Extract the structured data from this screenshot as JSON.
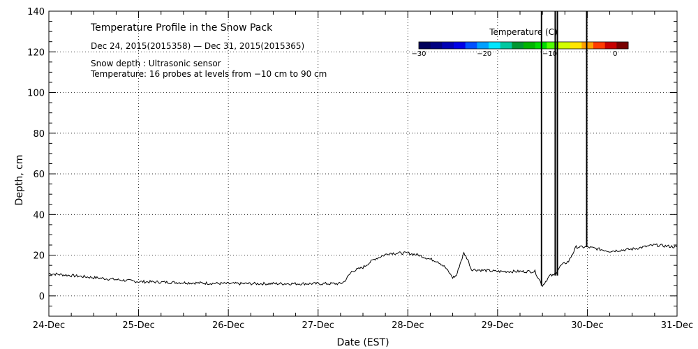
{
  "chart_data": {
    "type": "line",
    "title": "Temperature Profile in the Snow Pack",
    "subtitle": "Dec 24, 2015(2015358) — Dec 31, 2015(2015365)",
    "notes": [
      "Snow depth : Ultrasonic sensor",
      "Temperature: 16 probes at levels from −10 cm to 90 cm"
    ],
    "xlabel": "Date (EST)",
    "ylabel": "Depth, cm",
    "xlim": [
      "2015-12-24",
      "2015-12-31"
    ],
    "ylim": [
      -10,
      140
    ],
    "x_tick_labels": [
      "24-Dec",
      "25-Dec",
      "26-Dec",
      "27-Dec",
      "28-Dec",
      "29-Dec",
      "30-Dec",
      "31-Dec"
    ],
    "y_tick_labels": [
      "0",
      "20",
      "40",
      "60",
      "80",
      "100",
      "120",
      "140"
    ],
    "grid": true,
    "colorbar": {
      "title": "Temperature (C)",
      "tick_labels": [
        "−30",
        "−20",
        "−10",
        "0"
      ],
      "range": [
        -30,
        2
      ],
      "colors": [
        "#00005a",
        "#000080",
        "#0000b4",
        "#0000e6",
        "#0050ff",
        "#00a0ff",
        "#00e6ff",
        "#00c8a0",
        "#009632",
        "#00b400",
        "#00dc00",
        "#50ff00",
        "#d2ff00",
        "#ffe600",
        "#ffa000",
        "#ff3c00",
        "#c80000",
        "#780000"
      ]
    },
    "series": [
      {
        "color": "#000000",
        "points": [
          [
            "2015-12-24 00:00",
            11
          ],
          [
            "2015-12-24 06:00",
            10
          ],
          [
            "2015-12-24 12:00",
            9
          ],
          [
            "2015-12-24 18:00",
            8
          ],
          [
            "2015-12-25 00:00",
            7
          ],
          [
            "2015-12-25 12:00",
            6.5
          ],
          [
            "2015-12-26 00:00",
            6
          ],
          [
            "2015-12-26 12:00",
            6
          ],
          [
            "2015-12-27 00:00",
            6
          ],
          [
            "2015-12-27 06:00",
            6
          ],
          [
            "2015-12-27 07:00",
            7
          ],
          [
            "2015-12-27 09:00",
            12
          ],
          [
            "2015-12-27 12:00",
            14
          ],
          [
            "2015-12-27 15:00",
            18
          ],
          [
            "2015-12-27 19:00",
            21
          ],
          [
            "2015-12-28 00:00",
            21
          ],
          [
            "2015-12-28 03:00",
            20
          ],
          [
            "2015-12-28 06:00",
            18
          ],
          [
            "2015-12-28 08:00",
            17
          ],
          [
            "2015-12-28 10:00",
            14
          ],
          [
            "2015-12-28 12:00",
            9
          ],
          [
            "2015-12-28 13:00",
            10
          ],
          [
            "2015-12-28 14:00",
            16
          ],
          [
            "2015-12-28 15:00",
            21
          ],
          [
            "2015-12-28 16:00",
            18
          ],
          [
            "2015-12-28 17:00",
            13
          ],
          [
            "2015-12-29 00:00",
            12
          ],
          [
            "2015-12-29 06:00",
            12
          ],
          [
            "2015-12-29 10:00",
            12
          ],
          [
            "2015-12-29 12:00",
            5
          ],
          [
            "2015-12-29 14:00",
            10
          ],
          [
            "2015-12-29 15:00",
            10
          ],
          [
            "2015-12-29 17:00",
            15
          ],
          [
            "2015-12-29 19:00",
            17
          ],
          [
            "2015-12-29 21:00",
            24
          ],
          [
            "2015-12-30 00:00",
            24
          ],
          [
            "2015-12-30 06:00",
            22
          ],
          [
            "2015-12-30 12:00",
            23
          ],
          [
            "2015-12-30 18:00",
            25
          ],
          [
            "2015-12-31 00:00",
            24
          ]
        ]
      },
      {
        "color": "#000000",
        "style": "spike",
        "spikes": [
          {
            "x": "2015-12-29 11:45",
            "from": 5,
            "to": 140
          },
          {
            "x": "2015-12-29 15:25",
            "from": 10,
            "to": 140
          },
          {
            "x": "2015-12-29 16:00",
            "from": 10,
            "to": 140
          },
          {
            "x": "2015-12-29 23:50",
            "from": 24,
            "to": 140
          }
        ]
      }
    ]
  }
}
